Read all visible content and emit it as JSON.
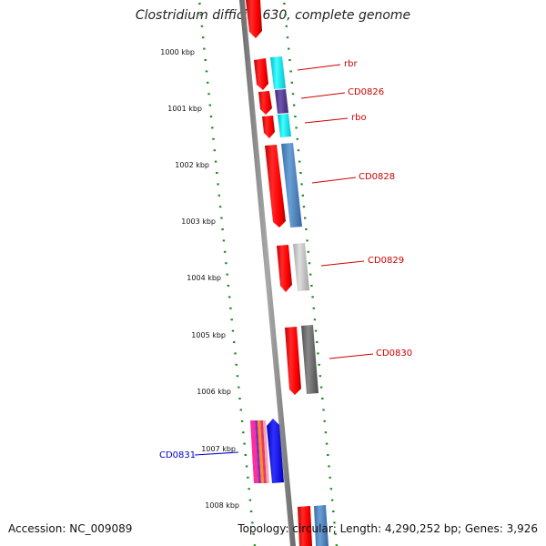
{
  "title": "Clostridium difficile 630, complete genome",
  "footer": {
    "accession": "Accession: NC_009089",
    "summary": "Topology: circular; Length: 4,290,252 bp; Genes: 3,926"
  },
  "ruler_labels": [
    "1000 kbp",
    "1001 kbp",
    "1002 kbp",
    "1003 kbp",
    "1004 kbp",
    "1005 kbp",
    "1006 kbp",
    "1007 kbp",
    "1008 kbp"
  ],
  "gene_labels": {
    "rbr": "rbr",
    "cd0826": "CD0826",
    "rbo": "rbo",
    "cd0828": "CD0828",
    "cd0829": "CD0829",
    "cd0830": "CD0830",
    "cd0831": "CD0831"
  },
  "colors": {
    "backbone": "#888888",
    "tick": "#1a8a1a",
    "label_red": "#cc0000",
    "label_blue": "#0000cc",
    "gene_red": "#ff0000",
    "cyan": "#00f0f0",
    "purple": "#5a3f9a",
    "steelblue": "#4f86c0",
    "lightgray": "#c8c8c8",
    "darkgray": "#707070",
    "blue": "#0000ff"
  }
}
